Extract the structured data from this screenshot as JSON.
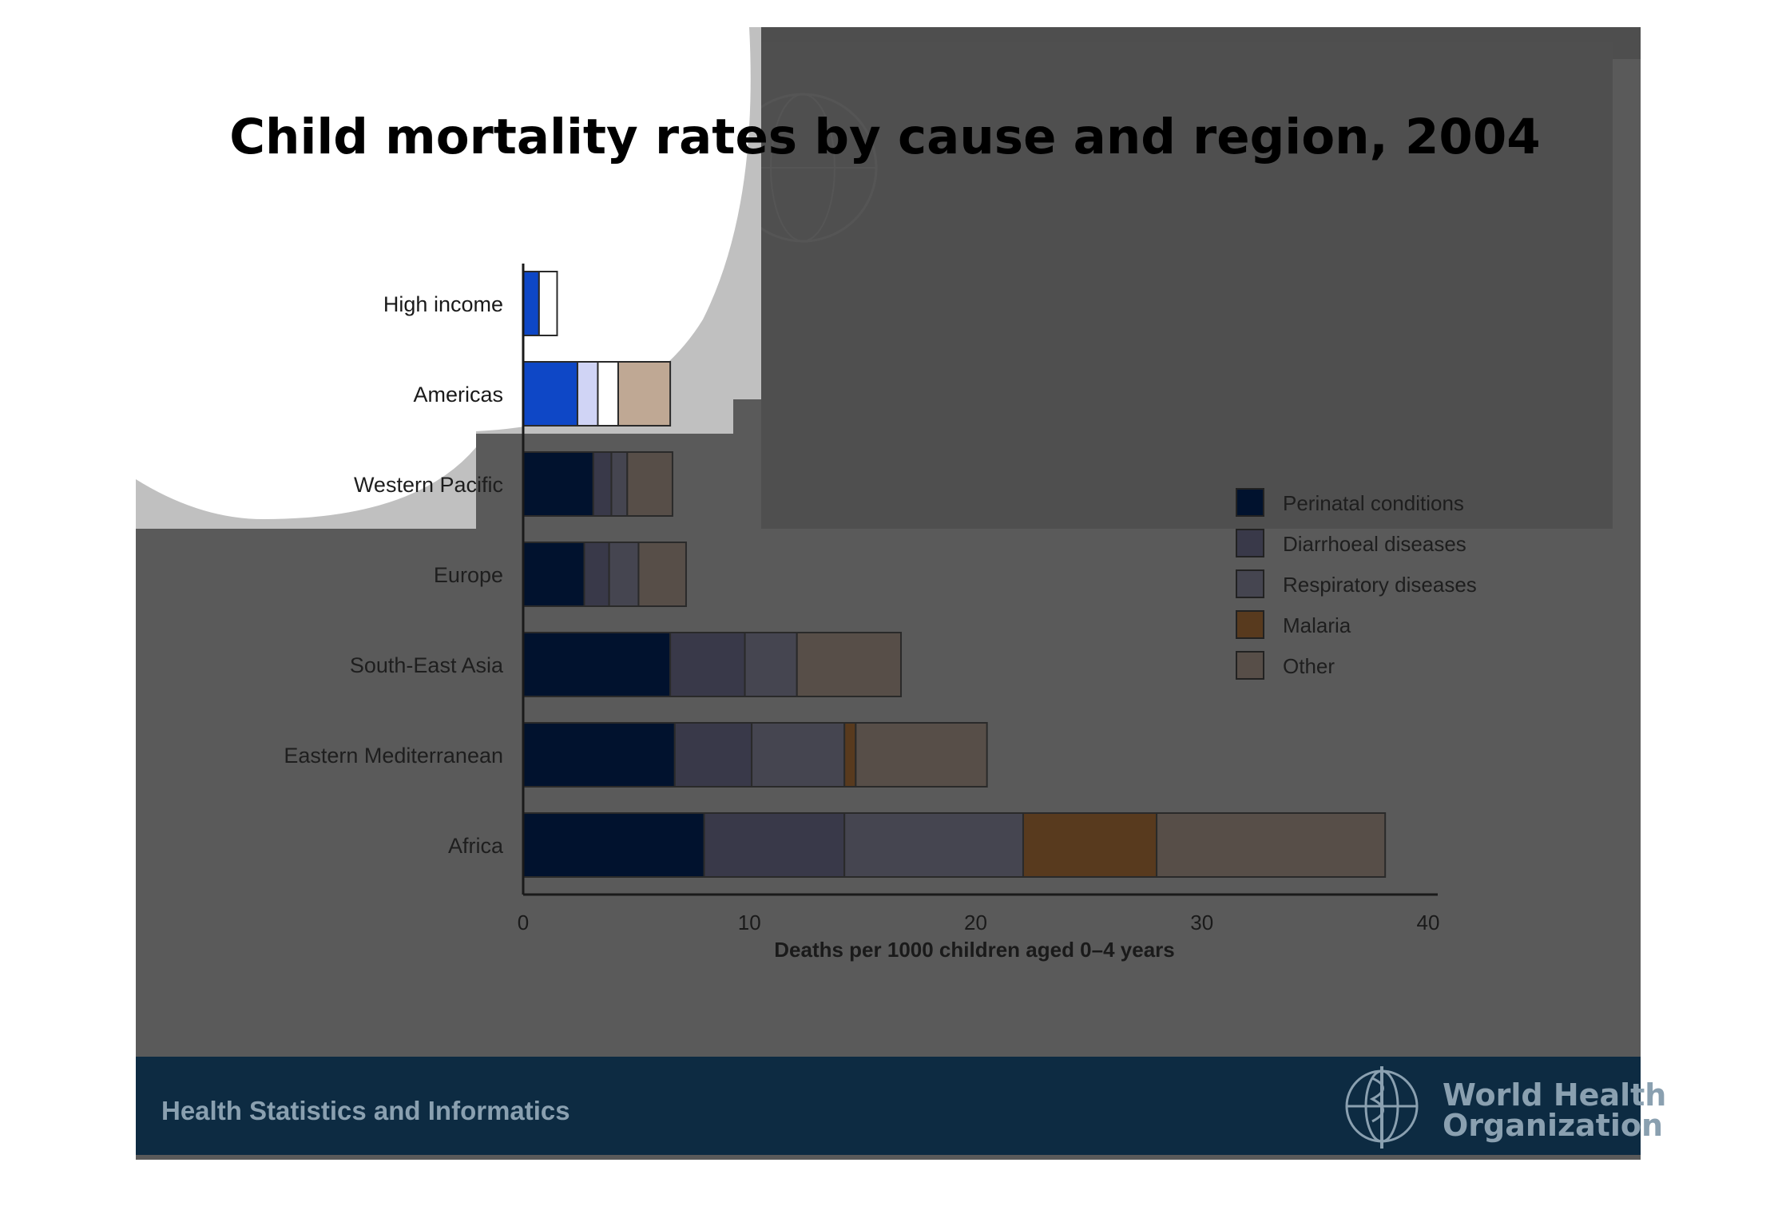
{
  "title": "Child mortality rates by cause and region, 2004",
  "footer": {
    "text": "Health Statistics and Informatics",
    "org_line1": "World Health",
    "org_line2": "Organization",
    "logo_icon": "who-emblem-icon"
  },
  "colors": {
    "slide_bg": "#5a5a5a",
    "footer_bg": "#0d2b42",
    "white_shape": "#ffffff",
    "grey_shape": "#c0c0c0",
    "perinatal": "#01122e",
    "diarrhoeal": "#393949",
    "respiratory": "#454550",
    "malaria": "#583a1e",
    "other": "#574e48",
    "americas_perinatal": "#0e47c6",
    "americas_diarrhoeal": "#d0d4f5",
    "americas_respiratory": "#ffffff",
    "americas_other": "#bfa894"
  },
  "chart_data": {
    "type": "bar",
    "orientation": "horizontal",
    "stacked": true,
    "title": "",
    "xlabel": "Deaths per 1000 children aged 0–4 years",
    "ylabel": "",
    "xlim": [
      0,
      40
    ],
    "xticks": [
      0,
      10,
      20,
      30,
      40
    ],
    "grid": false,
    "legend_position": "right",
    "categories": [
      "High income",
      "Americas",
      "Western Pacific",
      "Europe",
      "South-East Asia",
      "Eastern Mediterranean",
      "Africa"
    ],
    "series": [
      {
        "name": "Perinatal conditions",
        "color": "#01122e",
        "values": [
          0.7,
          2.4,
          3.1,
          2.7,
          6.5,
          6.7,
          8.0
        ]
      },
      {
        "name": "Diarrhoeal diseases",
        "color": "#393949",
        "values": [
          0.0,
          0.9,
          0.8,
          1.1,
          3.3,
          3.4,
          6.2
        ]
      },
      {
        "name": "Respiratory diseases",
        "color": "#454550",
        "values": [
          0.0,
          0.9,
          0.7,
          1.3,
          2.3,
          4.1,
          7.9
        ]
      },
      {
        "name": "Malaria",
        "color": "#583a1e",
        "values": [
          0.0,
          0.0,
          0.0,
          0.0,
          0.0,
          0.5,
          5.9
        ]
      },
      {
        "name": "Other",
        "color": "#574e48",
        "values": [
          0.8,
          2.3,
          2.0,
          2.1,
          4.6,
          5.8,
          10.1
        ]
      }
    ]
  }
}
